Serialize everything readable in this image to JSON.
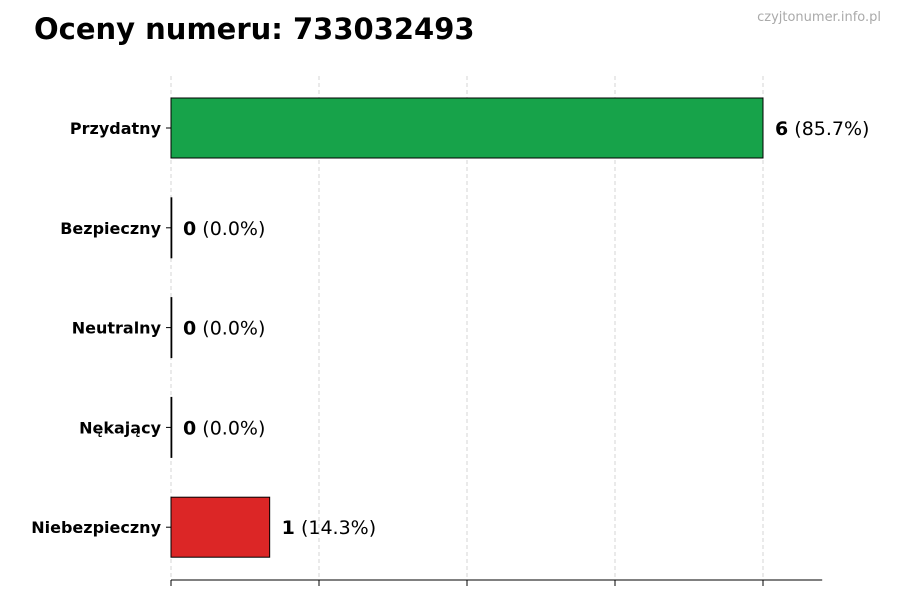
{
  "header": {
    "title": "Oceny numeru: 733032493",
    "watermark": "czyjtonumer.info.pl"
  },
  "chart_data": {
    "type": "bar",
    "orientation": "horizontal",
    "title": "Oceny numeru: 733032493",
    "categories": [
      "Przydatny",
      "Bezpieczny",
      "Neutralny",
      "Nękający",
      "Niebezpieczny"
    ],
    "values": [
      6,
      0,
      0,
      0,
      1
    ],
    "percent_labels": [
      "(85.7%)",
      "(0.0%)",
      "(0.0%)",
      "(0.0%)",
      "(14.3%)"
    ],
    "colors": [
      "#17a34a",
      "#9ca3af",
      "#9ca3af",
      "#f59e0b",
      "#dc2626"
    ],
    "xlim": [
      0,
      6.6
    ],
    "x_gridlines": [
      0,
      1.5,
      3,
      4.5,
      6
    ],
    "grid": true,
    "xlabel": "",
    "ylabel": ""
  }
}
